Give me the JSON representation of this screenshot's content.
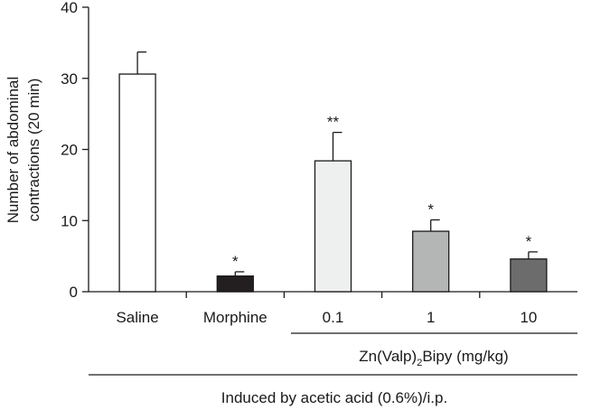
{
  "chart_data": {
    "type": "bar",
    "ylabel_line1": "Number of abdominal",
    "ylabel_line2": "contractions (20 min)",
    "ylim": [
      0,
      40
    ],
    "yticks": [
      "0",
      "10",
      "20",
      "30",
      "40"
    ],
    "categories": [
      "Saline",
      "Morphine",
      "0.1",
      "1",
      "10"
    ],
    "values": [
      30.6,
      2.2,
      18.4,
      8.5,
      4.6
    ],
    "errors": [
      3.1,
      0.6,
      4.0,
      1.6,
      1.0
    ],
    "significance": [
      "",
      "*",
      "**",
      "*",
      "*"
    ],
    "bar_colors": [
      "#ffffff",
      "#231f20",
      "#eef0f0",
      "#b4b6b6",
      "#6c6c6c"
    ],
    "group_label_main": "Zn(Valp)",
    "group_label_sub": "2",
    "group_label_tail": "Bipy (mg/kg)",
    "bottom_label": "Induced by acetic acid (0.6%)/i.p."
  }
}
